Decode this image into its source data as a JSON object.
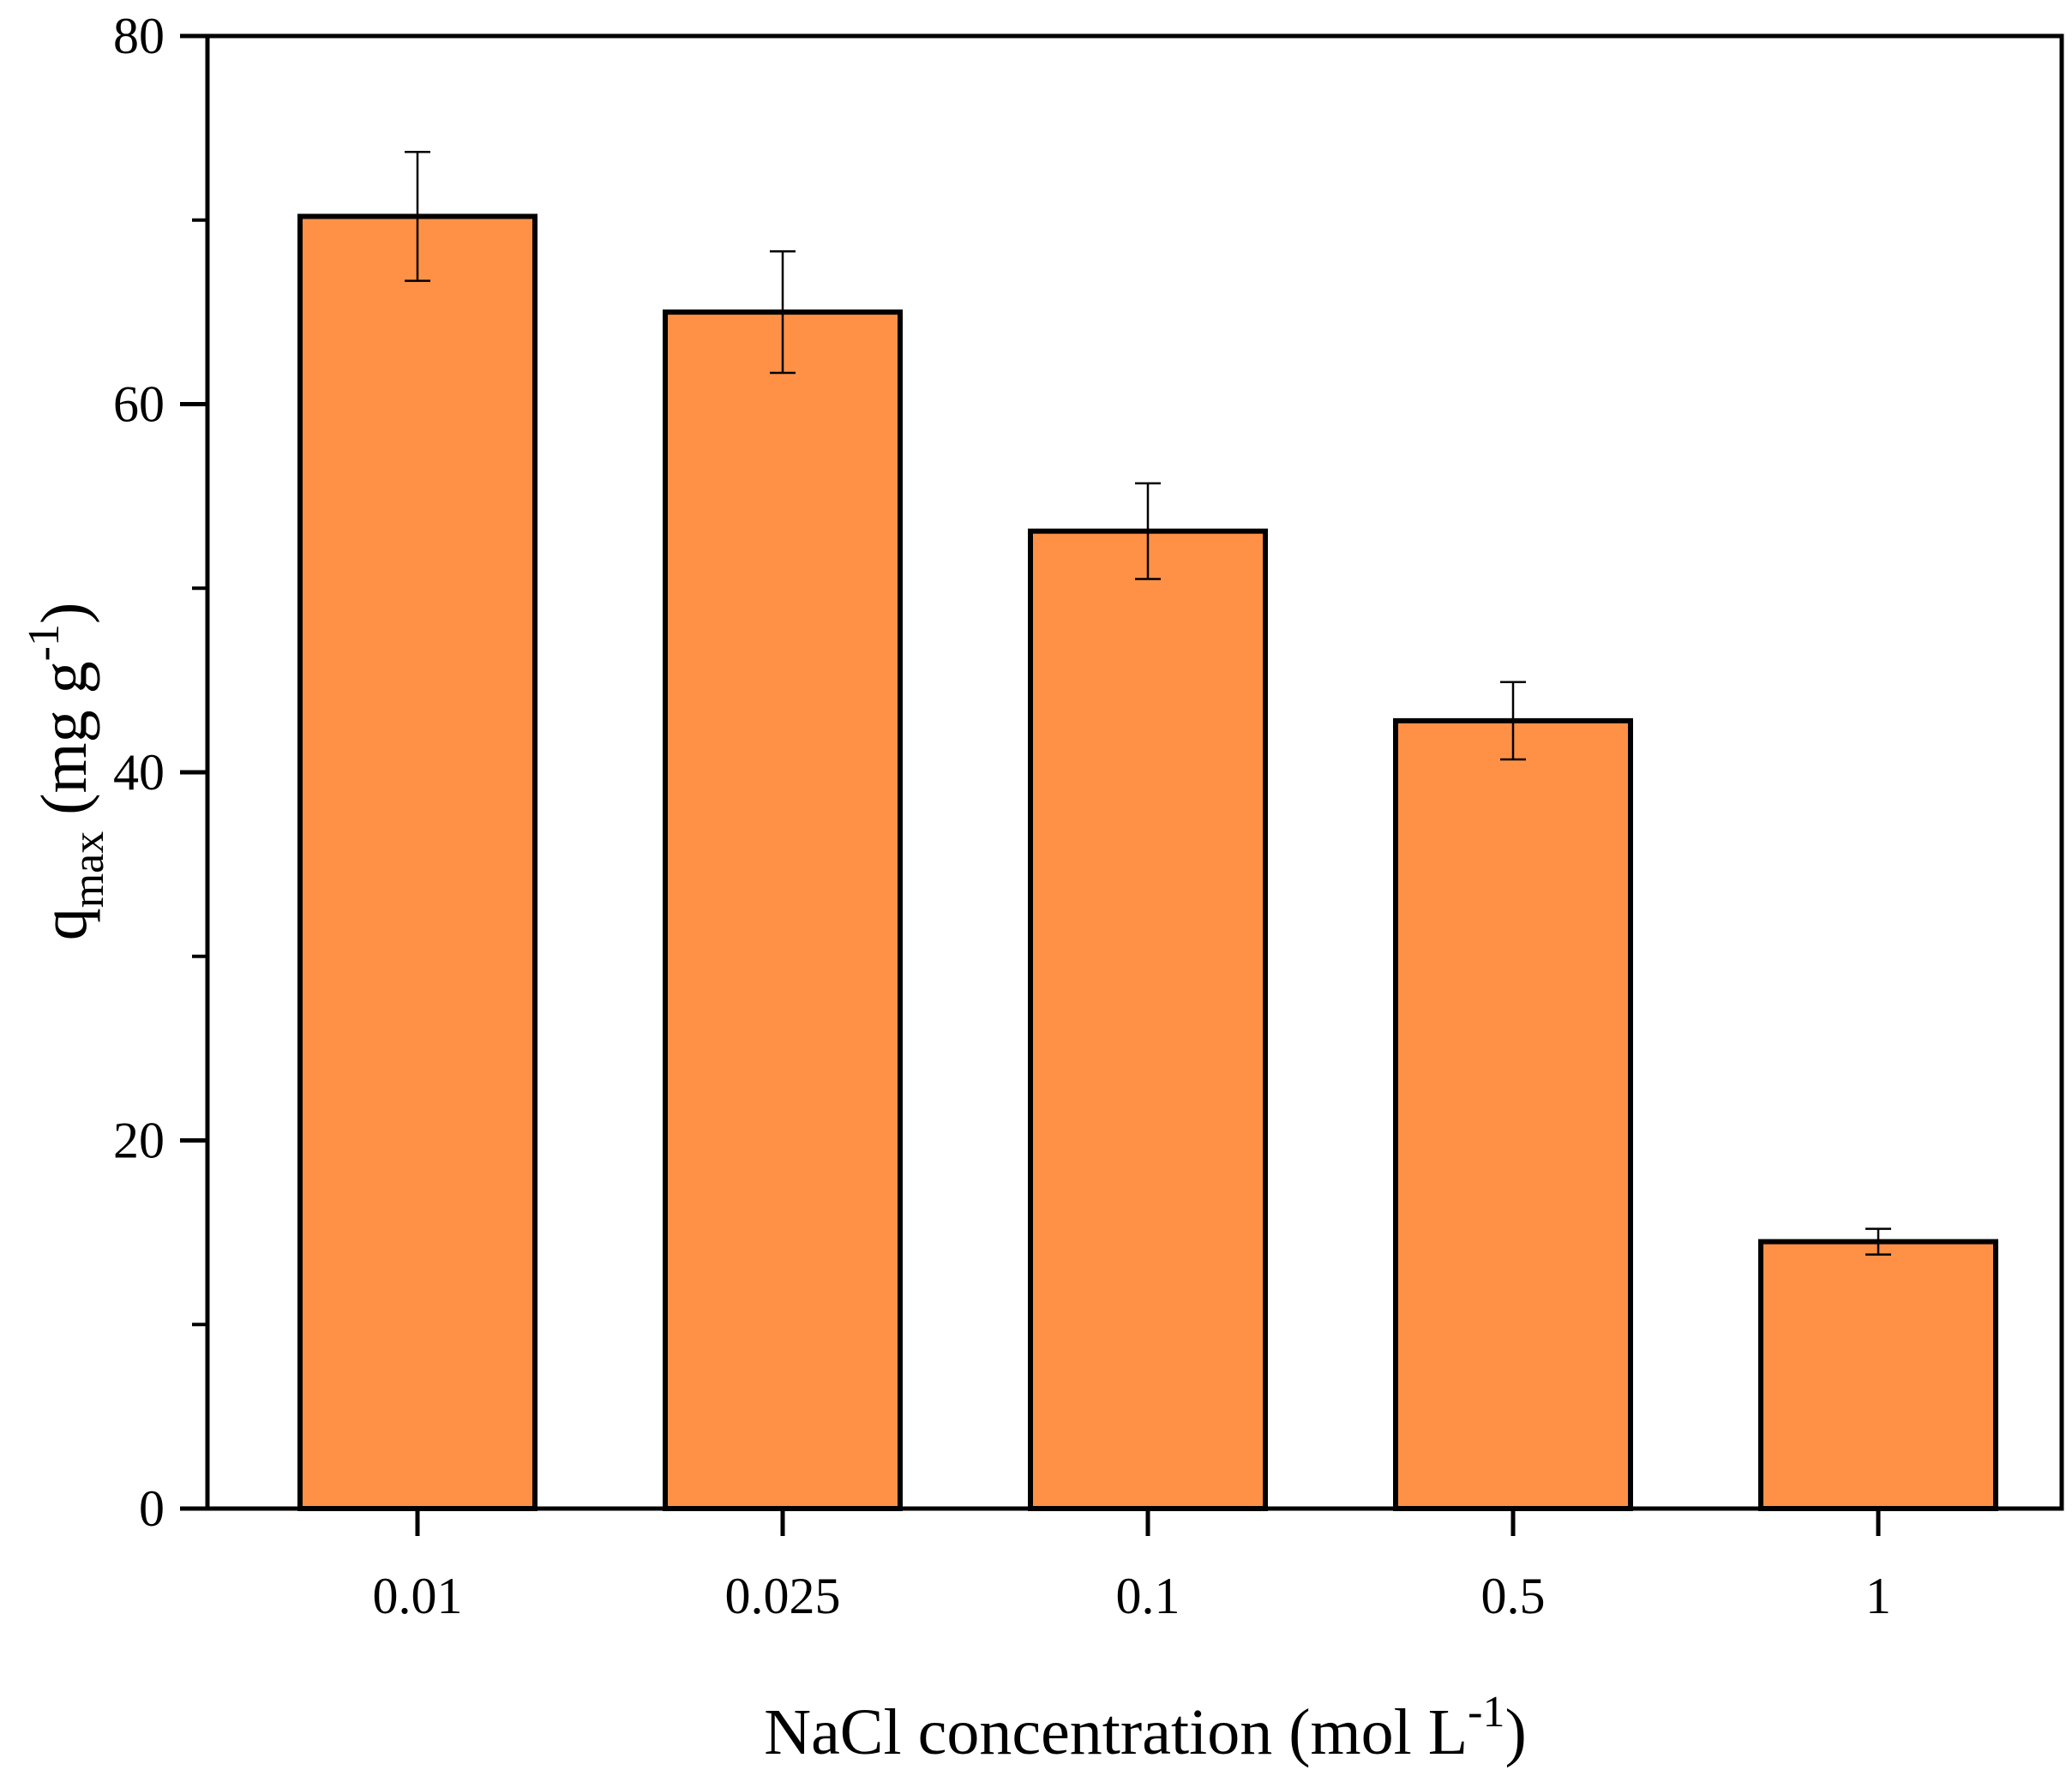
{
  "chart_data": {
    "type": "bar",
    "categories": [
      "0.01",
      "0.025",
      "0.1",
      "0.5",
      "1"
    ],
    "values": [
      70.2,
      65.0,
      53.1,
      42.8,
      14.5
    ],
    "errors": [
      3.5,
      3.3,
      2.6,
      2.1,
      0.7
    ],
    "ylim": [
      0,
      80
    ],
    "yticks": [
      0,
      20,
      40,
      60,
      80
    ],
    "yminor_ticks": [
      10,
      30,
      50,
      70
    ],
    "ytick_labels": [
      "0",
      "20",
      "40",
      "60",
      "80"
    ],
    "xlabel": {
      "text": "NaCl concentration (mol L",
      "sup": "-1",
      "close": ")"
    },
    "ylabel": {
      "base": "q",
      "sub": "max",
      "units": " (mg g",
      "sup": "-1",
      "close": ")"
    },
    "bar_color": "#FF9147",
    "bar_edge_color": "#000000",
    "grid": false
  }
}
